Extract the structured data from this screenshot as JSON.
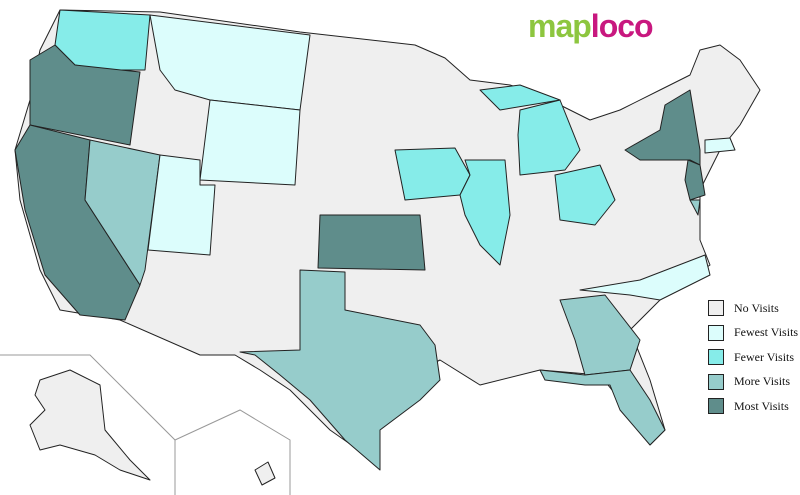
{
  "logo": {
    "part1": "map",
    "part2": "loco"
  },
  "colors": {
    "no_visits": "#efefef",
    "fewest": "#dcfdfc",
    "fewer": "#86ece9",
    "more": "#96cccb",
    "most": "#5f8d8b"
  },
  "legend": [
    {
      "label": "No Visits",
      "color": "#efefef"
    },
    {
      "label": "Fewest Visits",
      "color": "#dcfdfc"
    },
    {
      "label": "Fewer Visits",
      "color": "#86ece9"
    },
    {
      "label": "More Visits",
      "color": "#96cccb"
    },
    {
      "label": "Most Visits",
      "color": "#5f8d8b"
    }
  ],
  "states": {
    "Washington": "fewer",
    "Oregon": "most",
    "California": "most",
    "Nevada": "more",
    "Utah": "fewest",
    "Montana": "fewest",
    "Wyoming": "fewest",
    "Kansas": "most",
    "Texas": "more",
    "Iowa": "fewer",
    "Illinois": "fewer",
    "Michigan": "fewer",
    "Ohio": "fewer",
    "Georgia": "more",
    "Florida": "more",
    "North Carolina": "fewest",
    "New York": "most",
    "New Jersey": "most",
    "Delaware": "more",
    "Connecticut": "fewest"
  }
}
